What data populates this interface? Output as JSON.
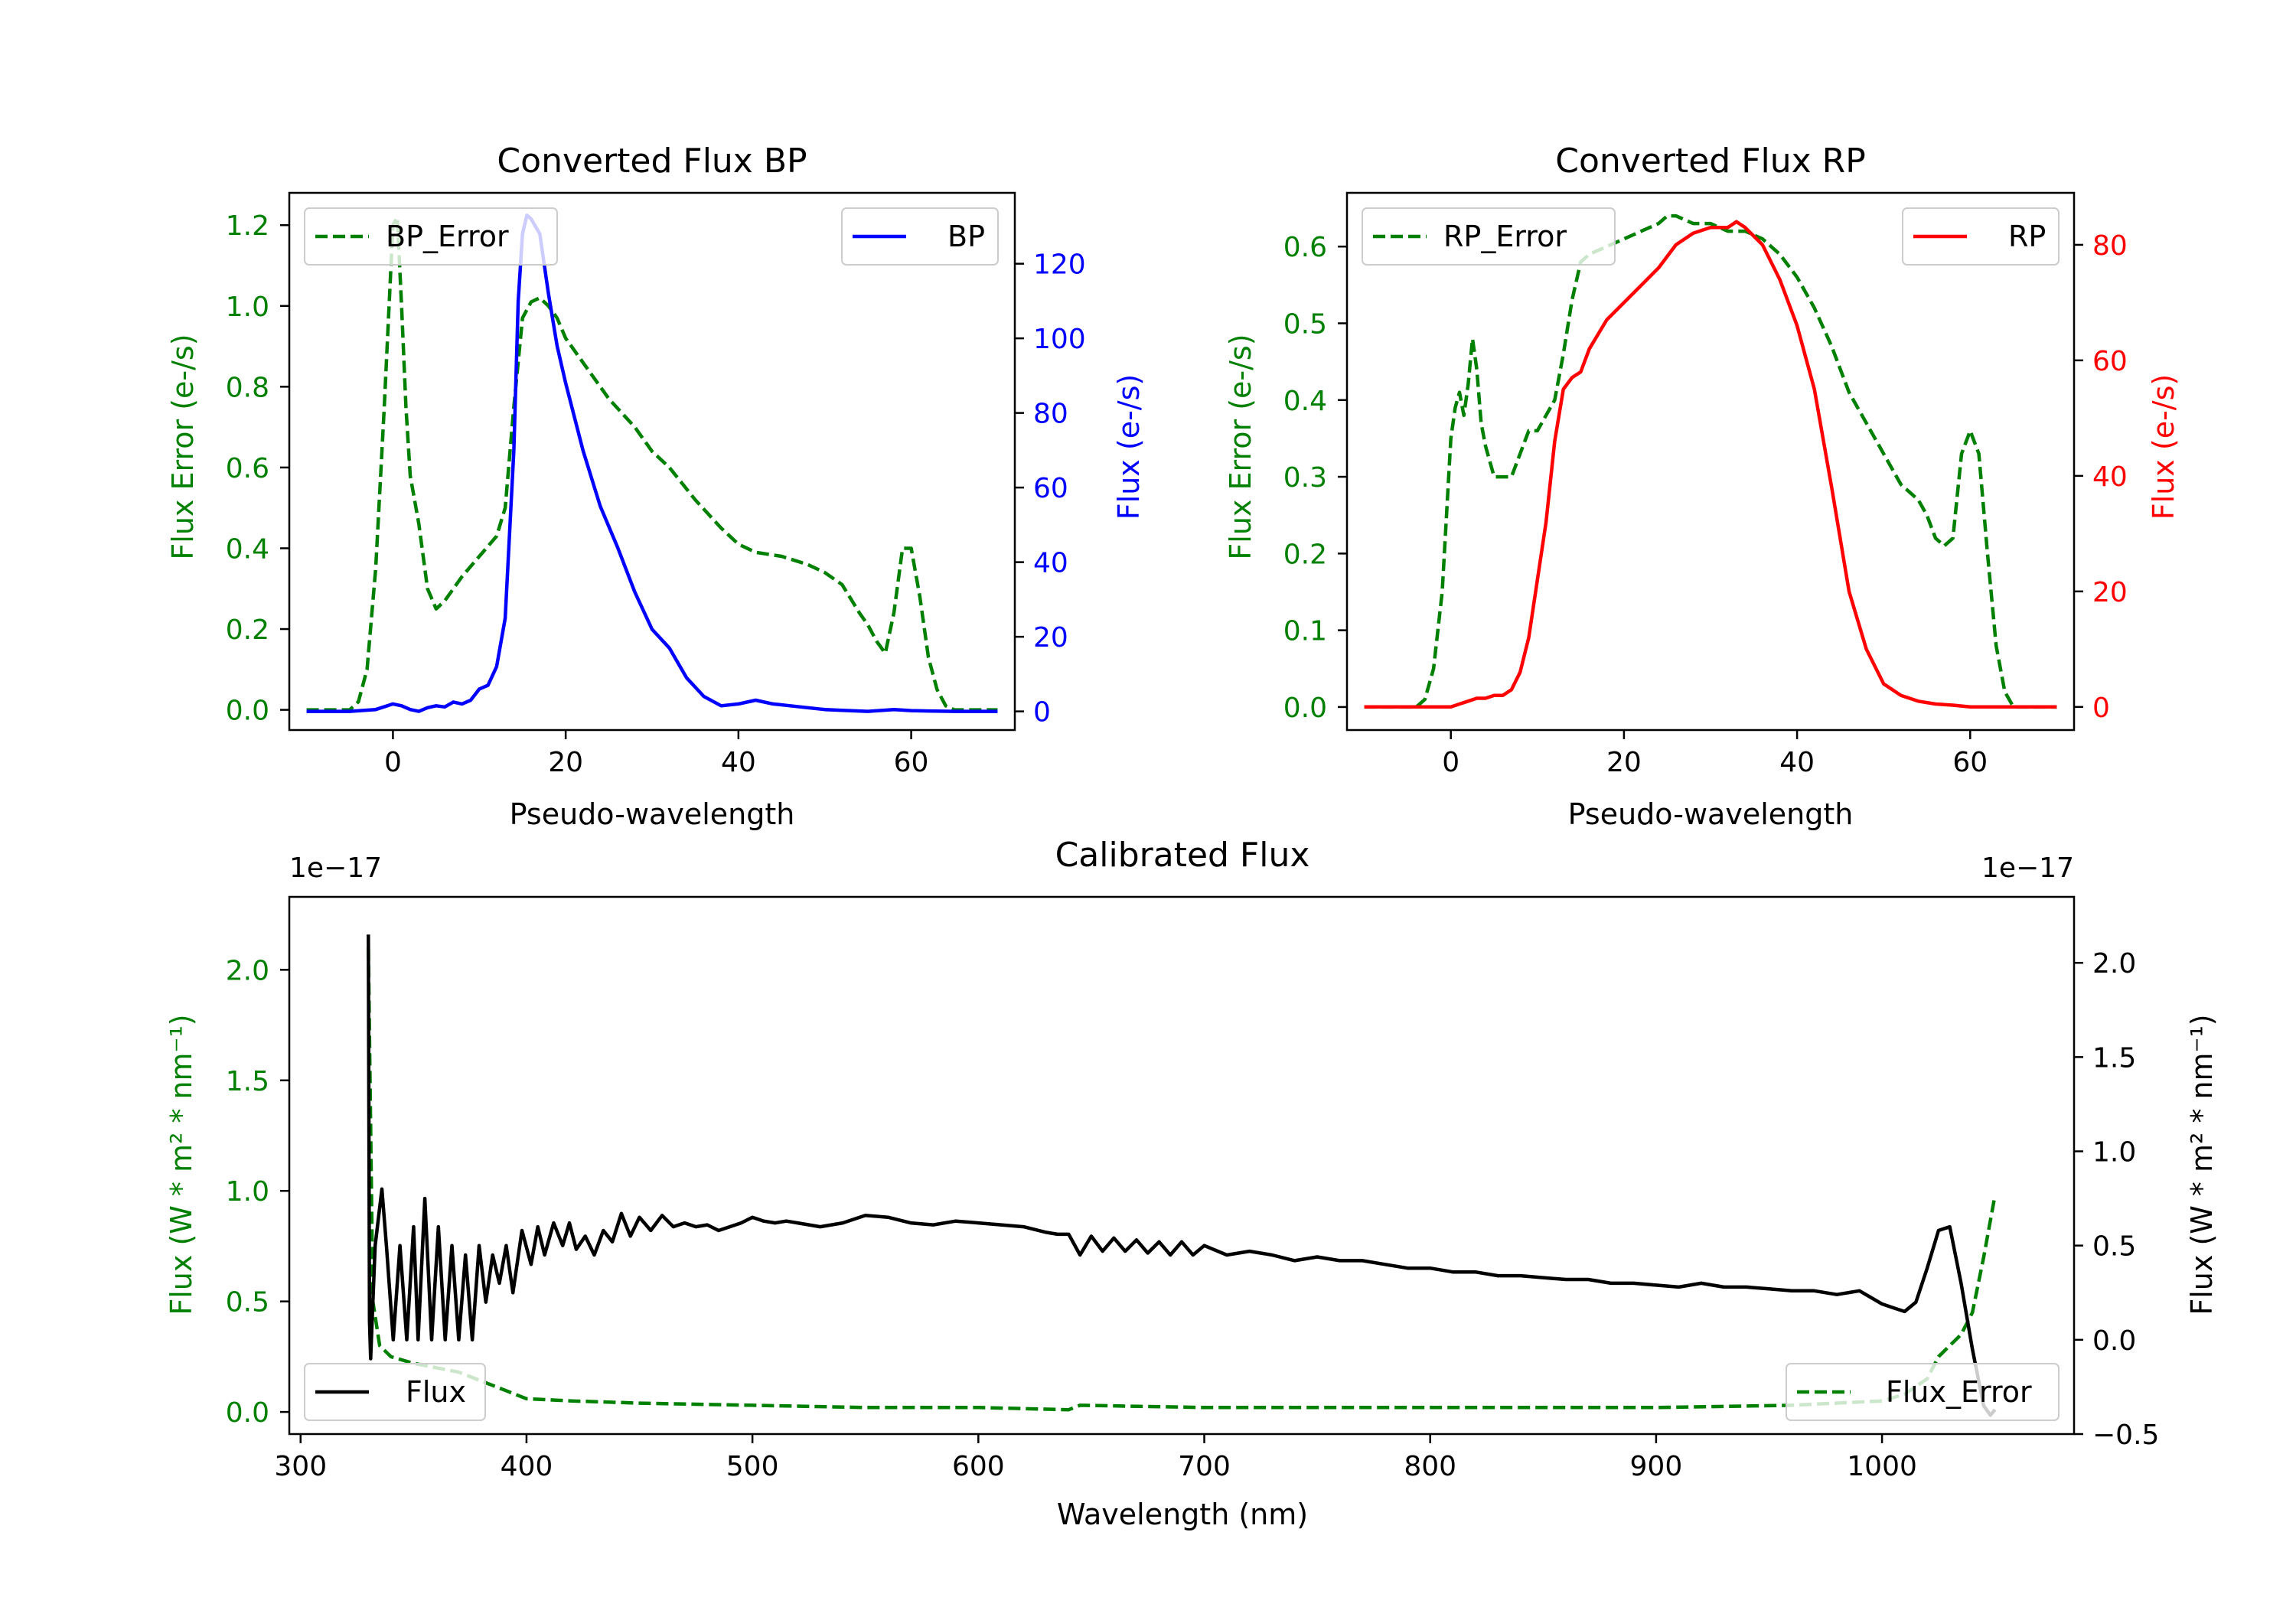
{
  "chart_data": [
    {
      "type": "line",
      "title": "Converted Flux BP",
      "xlabel": "Pseudo-wavelength",
      "ylabel_left": "Flux Error (e-/s)",
      "ylabel_right": "Flux (e-/s)",
      "xlim": [
        -12,
        72
      ],
      "ylim_left": [
        -0.05,
        1.28
      ],
      "ylim_right": [
        -5,
        139
      ],
      "xticks": [
        0,
        20,
        40,
        60
      ],
      "yticks_left": [
        0.0,
        0.2,
        0.4,
        0.6,
        0.8,
        1.0,
        1.2
      ],
      "yticks_right": [
        0,
        20,
        40,
        60,
        80,
        100,
        120
      ],
      "left_color": "#008000",
      "right_color": "#0000ff",
      "series": [
        {
          "name": "BP_Error",
          "axis": "left",
          "color": "#008000",
          "dash": "dashed",
          "x": [
            -10,
            -5,
            -4,
            -3,
            -2,
            -1,
            0,
            0.5,
            1,
            1.5,
            2,
            3,
            4,
            5,
            6,
            7,
            8,
            10,
            12,
            13,
            14,
            15,
            16,
            17,
            18,
            19,
            20,
            22,
            25,
            28,
            30,
            32,
            35,
            38,
            40,
            42,
            45,
            48,
            50,
            52,
            54,
            55,
            56,
            57,
            58,
            59,
            60,
            61,
            62,
            63,
            64,
            65,
            66,
            68,
            70
          ],
          "y": [
            0,
            0,
            0.02,
            0.1,
            0.35,
            0.75,
            1.2,
            1.22,
            1.0,
            0.75,
            0.58,
            0.46,
            0.3,
            0.25,
            0.27,
            0.3,
            0.33,
            0.38,
            0.43,
            0.5,
            0.75,
            0.97,
            1.01,
            1.02,
            1.0,
            0.97,
            0.92,
            0.86,
            0.77,
            0.7,
            0.64,
            0.6,
            0.52,
            0.45,
            0.41,
            0.39,
            0.38,
            0.36,
            0.34,
            0.31,
            0.24,
            0.21,
            0.17,
            0.14,
            0.24,
            0.4,
            0.4,
            0.28,
            0.13,
            0.05,
            0.01,
            0,
            0,
            0,
            0
          ]
        },
        {
          "name": "BP",
          "axis": "right",
          "color": "#0000ff",
          "dash": "solid",
          "x": [
            -10,
            -5,
            -2,
            0,
            1,
            2,
            3,
            4,
            5,
            6,
            7,
            8,
            9,
            10,
            11,
            12,
            13,
            14,
            14.5,
            15,
            15.5,
            16,
            17,
            18,
            19,
            20,
            22,
            24,
            26,
            28,
            30,
            32,
            34,
            36,
            38,
            40,
            42,
            44,
            46,
            48,
            50,
            52,
            55,
            58,
            60,
            62,
            65,
            70
          ],
          "y": [
            0,
            0,
            0.5,
            2,
            1.5,
            0.5,
            0,
            1,
            1.5,
            1.2,
            2.5,
            2,
            3,
            6,
            7,
            12,
            25,
            70,
            110,
            128,
            133,
            132,
            128,
            112,
            98,
            88,
            70,
            55,
            44,
            32,
            22,
            17,
            9,
            4,
            1.5,
            2,
            3,
            2,
            1.5,
            1,
            0.5,
            0.3,
            0,
            0.5,
            0.2,
            0.1,
            0,
            0
          ]
        }
      ],
      "legend": [
        {
          "label": "BP_Error",
          "position": "upper-left"
        },
        {
          "label": "BP",
          "position": "upper-right"
        }
      ]
    },
    {
      "type": "line",
      "title": "Converted Flux RP",
      "xlabel": "Pseudo-wavelength",
      "ylabel_left": "Flux Error (e-/s)",
      "ylabel_right": "Flux (e-/s)",
      "xlim": [
        -12,
        72
      ],
      "ylim_left": [
        -0.03,
        0.67
      ],
      "ylim_right": [
        -4,
        89
      ],
      "xticks": [
        0,
        20,
        40,
        60
      ],
      "yticks_left": [
        0.0,
        0.1,
        0.2,
        0.3,
        0.4,
        0.5,
        0.6
      ],
      "yticks_right": [
        0,
        20,
        40,
        60,
        80
      ],
      "left_color": "#008000",
      "right_color": "#ff0000",
      "series": [
        {
          "name": "RP_Error",
          "axis": "left",
          "color": "#008000",
          "dash": "dashed",
          "x": [
            -10,
            -4,
            -3,
            -2,
            -1,
            0,
            0.5,
            1,
            1.5,
            2,
            2.5,
            3,
            3.5,
            4,
            5,
            6,
            7,
            8,
            9,
            10,
            11,
            12,
            13,
            14,
            15,
            16,
            18,
            20,
            22,
            24,
            25,
            26,
            28,
            30,
            32,
            34,
            36,
            38,
            40,
            42,
            44,
            46,
            48,
            50,
            52,
            54,
            55,
            56,
            57,
            58,
            59,
            60,
            61,
            62,
            63,
            64,
            65,
            70
          ],
          "y": [
            0,
            0,
            0.01,
            0.05,
            0.15,
            0.35,
            0.39,
            0.41,
            0.38,
            0.42,
            0.48,
            0.44,
            0.37,
            0.34,
            0.3,
            0.3,
            0.3,
            0.33,
            0.36,
            0.36,
            0.38,
            0.4,
            0.46,
            0.53,
            0.58,
            0.59,
            0.6,
            0.61,
            0.62,
            0.63,
            0.64,
            0.64,
            0.63,
            0.63,
            0.62,
            0.62,
            0.61,
            0.59,
            0.56,
            0.52,
            0.47,
            0.41,
            0.37,
            0.33,
            0.29,
            0.27,
            0.25,
            0.22,
            0.21,
            0.22,
            0.33,
            0.36,
            0.33,
            0.2,
            0.08,
            0.02,
            0,
            0
          ]
        },
        {
          "name": "RP",
          "axis": "right",
          "color": "#ff0000",
          "dash": "solid",
          "x": [
            -10,
            -2,
            0,
            1,
            2,
            3,
            4,
            5,
            6,
            7,
            8,
            9,
            10,
            11,
            12,
            13,
            14,
            15,
            16,
            18,
            20,
            22,
            24,
            26,
            28,
            30,
            32,
            33,
            34,
            36,
            38,
            40,
            42,
            44,
            46,
            48,
            50,
            52,
            54,
            56,
            58,
            60,
            62,
            70
          ],
          "y": [
            0,
            0,
            0,
            0.5,
            1,
            1.5,
            1.5,
            2,
            2,
            3,
            6,
            12,
            22,
            32,
            46,
            55,
            57,
            58,
            62,
            67,
            70,
            73,
            76,
            80,
            82,
            83,
            83,
            84,
            83,
            80,
            74,
            66,
            55,
            38,
            20,
            10,
            4,
            2,
            1,
            0.5,
            0.3,
            0,
            0,
            0
          ]
        }
      ],
      "legend": [
        {
          "label": "RP_Error",
          "position": "upper-left"
        },
        {
          "label": "RP",
          "position": "upper-right"
        }
      ]
    },
    {
      "type": "line",
      "title": "Calibrated Flux",
      "xlabel": "Wavelength (nm)",
      "ylabel_left": "Flux (W * m² * nm⁻¹)",
      "ylabel_right": "Flux (W * m² * nm⁻¹)",
      "offset_left": "1e−17",
      "offset_right": "1e−17",
      "xlim": [
        295,
        1085
      ],
      "ylim_left": [
        -0.1,
        2.33
      ],
      "ylim_right": [
        -0.5,
        2.35
      ],
      "xticks": [
        300,
        400,
        500,
        600,
        700,
        800,
        900,
        1000
      ],
      "yticks_left": [
        0.0,
        0.5,
        1.0,
        1.5,
        2.0
      ],
      "yticks_right": [
        -0.5,
        0.0,
        0.5,
        1.0,
        1.5,
        2.0
      ],
      "left_color": "#008000",
      "right_color": "#000000",
      "series": [
        {
          "name": "Flux_Error",
          "axis": "left",
          "color": "#008000",
          "dash": "dashed",
          "x": [
            330,
            332,
            335,
            340,
            350,
            360,
            370,
            380,
            390,
            400,
            420,
            450,
            500,
            550,
            600,
            640,
            645,
            700,
            800,
            900,
            960,
            1000,
            1010,
            1020,
            1025,
            1030,
            1035,
            1040,
            1045,
            1050
          ],
          "y": [
            2.1,
            0.5,
            0.3,
            0.25,
            0.22,
            0.2,
            0.18,
            0.14,
            0.1,
            0.06,
            0.05,
            0.04,
            0.03,
            0.02,
            0.02,
            0.01,
            0.03,
            0.02,
            0.02,
            0.02,
            0.03,
            0.05,
            0.08,
            0.15,
            0.25,
            0.3,
            0.35,
            0.45,
            0.7,
            0.98
          ]
        },
        {
          "name": "Flux",
          "axis": "right",
          "color": "#000000",
          "dash": "solid",
          "x": [
            330,
            330.5,
            331,
            332,
            333,
            336,
            338,
            341,
            344,
            347,
            350,
            352,
            355,
            358,
            361,
            364,
            367,
            370,
            373,
            376,
            379,
            382,
            385,
            388,
            391,
            394,
            398,
            402,
            405,
            408,
            412,
            416,
            419,
            422,
            426,
            430,
            434,
            438,
            442,
            446,
            450,
            455,
            460,
            465,
            470,
            475,
            480,
            485,
            490,
            495,
            500,
            505,
            510,
            515,
            520,
            530,
            540,
            550,
            560,
            570,
            580,
            590,
            600,
            610,
            620,
            630,
            635,
            640,
            645,
            650,
            655,
            660,
            665,
            670,
            675,
            680,
            685,
            690,
            695,
            700,
            710,
            720,
            730,
            740,
            750,
            760,
            770,
            780,
            790,
            800,
            810,
            820,
            830,
            840,
            850,
            860,
            870,
            880,
            890,
            900,
            910,
            920,
            930,
            940,
            950,
            960,
            970,
            980,
            990,
            1000,
            1005,
            1010,
            1015,
            1020,
            1025,
            1030,
            1035,
            1040,
            1045,
            1048,
            1050
          ],
          "y": [
            2.15,
            0.1,
            -0.1,
            0.2,
            0.5,
            0.8,
            0.5,
            0.0,
            0.5,
            0.0,
            0.6,
            0.0,
            0.75,
            0.0,
            0.6,
            0.0,
            0.5,
            0.0,
            0.45,
            0.0,
            0.5,
            0.2,
            0.45,
            0.3,
            0.5,
            0.25,
            0.58,
            0.4,
            0.6,
            0.45,
            0.62,
            0.5,
            0.62,
            0.48,
            0.55,
            0.45,
            0.58,
            0.52,
            0.67,
            0.55,
            0.65,
            0.58,
            0.66,
            0.6,
            0.62,
            0.6,
            0.61,
            0.58,
            0.6,
            0.62,
            0.65,
            0.63,
            0.62,
            0.63,
            0.62,
            0.6,
            0.62,
            0.66,
            0.65,
            0.62,
            0.61,
            0.63,
            0.62,
            0.61,
            0.6,
            0.57,
            0.56,
            0.56,
            0.45,
            0.55,
            0.47,
            0.54,
            0.47,
            0.53,
            0.46,
            0.52,
            0.45,
            0.52,
            0.45,
            0.5,
            0.45,
            0.47,
            0.45,
            0.42,
            0.44,
            0.42,
            0.42,
            0.4,
            0.38,
            0.38,
            0.36,
            0.36,
            0.34,
            0.34,
            0.33,
            0.32,
            0.32,
            0.3,
            0.3,
            0.29,
            0.28,
            0.3,
            0.28,
            0.28,
            0.27,
            0.26,
            0.26,
            0.24,
            0.26,
            0.19,
            0.17,
            0.15,
            0.2,
            0.38,
            0.58,
            0.6,
            0.3,
            -0.05,
            -0.35,
            -0.4,
            -0.37
          ]
        }
      ],
      "legend": [
        {
          "label": "Flux",
          "position": "lower-left"
        },
        {
          "label": "Flux_Error",
          "position": "lower-right"
        }
      ]
    }
  ]
}
